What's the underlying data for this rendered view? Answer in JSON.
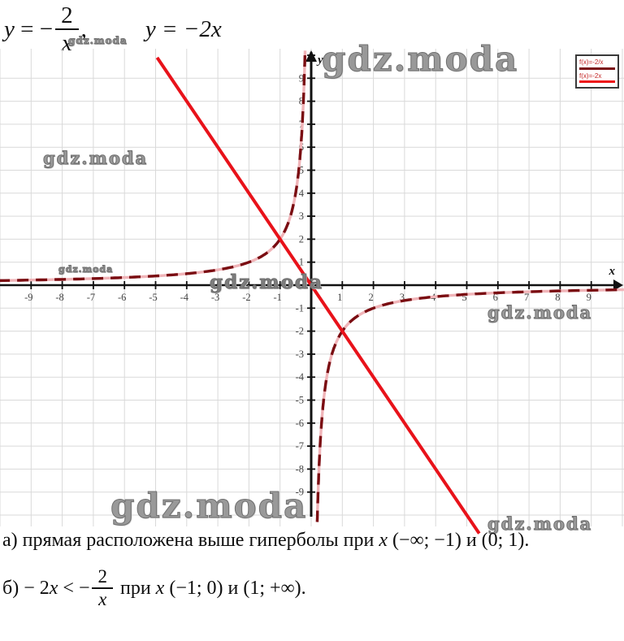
{
  "header_formula": {
    "y1": "y",
    "eq1": " = ",
    "minus1": "−",
    "num1": "2",
    "den1": "x",
    "comma": ",",
    "second": "y = −2x"
  },
  "watermark": {
    "text": "gdz.moda"
  },
  "legend": {
    "items": [
      {
        "label": "f(x)=-2/x",
        "color": "#7a0d12"
      },
      {
        "label": "f(x)=-2x",
        "color": "#ed1115"
      }
    ]
  },
  "chart_data": {
    "type": "line",
    "title": "",
    "xlabel": "x",
    "ylabel": "y",
    "xlim": [
      -10.05,
      10.05
    ],
    "ylim": [
      -11,
      10.4
    ],
    "grid": true,
    "x_ticks": [
      -9,
      -8,
      -7,
      -6,
      -5,
      -4,
      -3,
      -2,
      -1,
      1,
      2,
      3,
      4,
      5,
      6,
      7,
      8,
      9
    ],
    "y_ticks": [
      -9,
      -8,
      -7,
      -6,
      -5,
      -4,
      -3,
      -2,
      -1,
      1,
      2,
      3,
      4,
      5,
      6,
      7,
      8,
      9
    ],
    "series": [
      {
        "name": "f(x)=-2/x",
        "kind": "reciprocal",
        "k": -2,
        "color": "#7a0d12",
        "underlay_color": "#f0b4b8",
        "dash": [
          14,
          9
        ],
        "width": 3.4,
        "y_clip": [
          -10.3,
          10.2
        ]
      },
      {
        "name": "f(x)=-2x",
        "kind": "linear",
        "slope": -2,
        "intercept": 0,
        "color": "#e8121a",
        "width": 4,
        "x_range": [
          -4.95,
          5.4
        ]
      }
    ],
    "intersections": [
      [
        -1,
        2
      ],
      [
        1,
        -2
      ]
    ],
    "axis_color": "#111111",
    "grid_color": "#d9d9d9",
    "tick_label_color": "#454545"
  },
  "answers": {
    "a": {
      "p1": "а) прямая расположена выше гиперболы при ",
      "x": "x",
      "p2": " (−∞; −1) и (0; 1)."
    },
    "b": {
      "p1": "б) − 2",
      "x1": "x",
      "p2": " < −",
      "num": "2",
      "den": "x",
      "p3": " при ",
      "x2": "x",
      "p4": " (−1; 0) и (1; +∞)."
    }
  }
}
